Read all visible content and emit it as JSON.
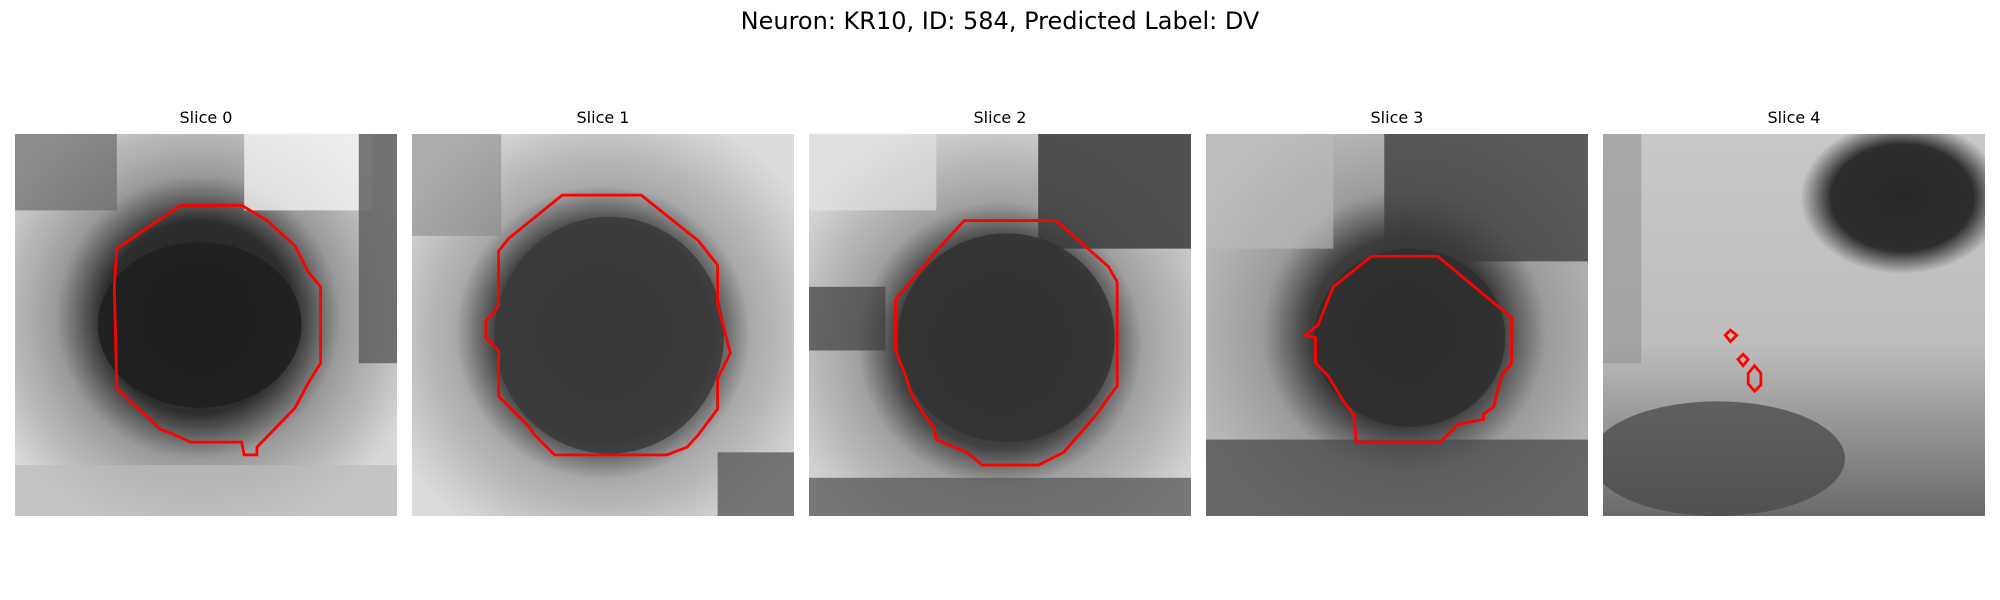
{
  "suptitle": "Neuron: KR10, ID: 584, Predicted Label: DV",
  "outline_color": "#ff0000",
  "slices": [
    {
      "title": "Slice 0"
    },
    {
      "title": "Slice 1"
    },
    {
      "title": "Slice 2"
    },
    {
      "title": "Slice 3"
    },
    {
      "title": "Slice 4"
    }
  ]
}
